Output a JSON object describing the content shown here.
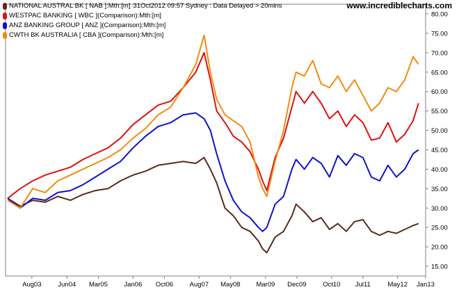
{
  "header": {
    "site_url": "www.incrediblecharts.com",
    "meta": "31Oct2012 09:57  Sydney : Data Delayed > 20mins"
  },
  "chart_data": {
    "type": "line",
    "title": "",
    "xlabel": "",
    "ylabel": "",
    "ylim": [
      12.5,
      82.5
    ],
    "xlim": [
      2002.95,
      2013.0
    ],
    "grid": false,
    "legend_position": "top-left",
    "y_ticks": [
      "15.00",
      "20.00",
      "25.00",
      "30.00",
      "35.00",
      "40.00",
      "45.00",
      "50.00",
      "55.00",
      "60.00",
      "65.00",
      "70.00",
      "75.00",
      "80.00"
    ],
    "y_tick_values": [
      15,
      20,
      25,
      30,
      35,
      40,
      45,
      50,
      55,
      60,
      65,
      70,
      75,
      80
    ],
    "x_ticks": [
      {
        "label": "Aug03",
        "t": 2003.58
      },
      {
        "label": "Jun04",
        "t": 2004.42
      },
      {
        "label": "Mar05",
        "t": 2005.17
      },
      {
        "label": "Jan06",
        "t": 2006.0
      },
      {
        "label": "Oct06",
        "t": 2006.75
      },
      {
        "label": "Aug07",
        "t": 2007.58
      },
      {
        "label": "May08",
        "t": 2008.33
      },
      {
        "label": "Mar09",
        "t": 2009.17
      },
      {
        "label": "Dec09",
        "t": 2009.92
      },
      {
        "label": "Oct10",
        "t": 2010.75
      },
      {
        "label": "Jul11",
        "t": 2011.5
      },
      {
        "label": "May12",
        "t": 2012.33
      },
      {
        "label": "Jan13",
        "t": 2013.0
      }
    ],
    "series": [
      {
        "name": "NATIONAL AUSTRAL BK [ NAB ]:Mth:[m]",
        "color": "#5a2a1e",
        "x": [
          2003.0,
          2003.3,
          2003.6,
          2003.9,
          2004.2,
          2004.5,
          2004.8,
          2005.1,
          2005.4,
          2005.7,
          2006.0,
          2006.3,
          2006.6,
          2006.9,
          2007.2,
          2007.5,
          2007.7,
          2007.85,
          2008.0,
          2008.2,
          2008.4,
          2008.6,
          2008.8,
          2009.0,
          2009.1,
          2009.2,
          2009.4,
          2009.6,
          2009.8,
          2009.9,
          2010.1,
          2010.3,
          2010.5,
          2010.7,
          2010.9,
          2011.1,
          2011.3,
          2011.5,
          2011.7,
          2011.9,
          2012.1,
          2012.3,
          2012.5,
          2012.7,
          2012.83
        ],
        "values": [
          32.5,
          30.5,
          32.0,
          31.5,
          33.0,
          32.0,
          33.5,
          34.5,
          35.0,
          37.0,
          38.5,
          39.5,
          41.0,
          41.5,
          42.0,
          41.5,
          43.0,
          40.0,
          36.5,
          30.0,
          28.0,
          25.0,
          24.0,
          21.5,
          19.5,
          18.5,
          22.5,
          24.0,
          28.0,
          31.0,
          29.0,
          26.5,
          27.5,
          24.5,
          26.0,
          24.0,
          26.5,
          27.0,
          24.0,
          23.0,
          24.0,
          23.5,
          24.5,
          25.5,
          26.0
        ]
      },
      {
        "name": "WESTPAC BANKING [ WBC ](Comparison):Mth:[m]",
        "color": "#e01010",
        "x": [
          2003.0,
          2003.3,
          2003.6,
          2003.9,
          2004.2,
          2004.5,
          2004.8,
          2005.1,
          2005.4,
          2005.7,
          2006.0,
          2006.3,
          2006.6,
          2006.9,
          2007.2,
          2007.5,
          2007.7,
          2007.85,
          2008.0,
          2008.2,
          2008.4,
          2008.6,
          2008.8,
          2009.0,
          2009.1,
          2009.2,
          2009.4,
          2009.6,
          2009.8,
          2009.9,
          2010.1,
          2010.3,
          2010.5,
          2010.7,
          2010.9,
          2011.1,
          2011.3,
          2011.5,
          2011.7,
          2011.9,
          2012.1,
          2012.3,
          2012.5,
          2012.7,
          2012.83
        ],
        "values": [
          32.5,
          35.0,
          37.0,
          38.5,
          39.5,
          40.5,
          42.5,
          44.0,
          45.5,
          48.0,
          51.5,
          54.0,
          56.5,
          57.5,
          61.0,
          65.0,
          70.0,
          63.0,
          55.0,
          52.0,
          48.5,
          47.0,
          44.5,
          40.0,
          37.0,
          34.5,
          43.0,
          48.0,
          56.0,
          60.0,
          57.0,
          60.0,
          57.0,
          53.0,
          55.0,
          51.0,
          54.0,
          52.0,
          47.5,
          48.0,
          52.0,
          47.0,
          49.0,
          52.5,
          57.0
        ]
      },
      {
        "name": "ANZ BANKING GROUP [ ANZ ](Comparison):Mth:[m]",
        "color": "#1010cc",
        "x": [
          2003.0,
          2003.3,
          2003.6,
          2003.9,
          2004.2,
          2004.5,
          2004.8,
          2005.1,
          2005.4,
          2005.7,
          2006.0,
          2006.3,
          2006.6,
          2006.9,
          2007.2,
          2007.5,
          2007.7,
          2007.85,
          2008.0,
          2008.2,
          2008.4,
          2008.6,
          2008.8,
          2009.0,
          2009.1,
          2009.2,
          2009.4,
          2009.6,
          2009.8,
          2009.9,
          2010.1,
          2010.3,
          2010.5,
          2010.7,
          2010.9,
          2011.1,
          2011.3,
          2011.5,
          2011.7,
          2011.9,
          2012.1,
          2012.3,
          2012.5,
          2012.7,
          2012.83
        ],
        "values": [
          32.5,
          30.0,
          32.5,
          32.0,
          34.0,
          34.5,
          36.0,
          38.0,
          40.0,
          42.0,
          45.5,
          48.5,
          51.0,
          52.0,
          54.0,
          54.5,
          53.0,
          50.0,
          44.0,
          37.0,
          32.0,
          29.0,
          27.5,
          25.0,
          24.0,
          25.0,
          31.0,
          33.0,
          40.0,
          42.5,
          40.0,
          43.0,
          41.5,
          38.0,
          43.5,
          41.0,
          44.0,
          43.0,
          38.0,
          37.0,
          41.0,
          38.0,
          40.0,
          44.0,
          45.0
        ]
      },
      {
        "name": "CWTH BK AUSTRALIA [ CBA ](Comparison):Mth:[m]",
        "color": "#f08c10",
        "x": [
          2003.0,
          2003.3,
          2003.6,
          2003.9,
          2004.2,
          2004.5,
          2004.8,
          2005.1,
          2005.4,
          2005.7,
          2006.0,
          2006.3,
          2006.6,
          2006.9,
          2007.2,
          2007.5,
          2007.7,
          2007.85,
          2008.0,
          2008.2,
          2008.4,
          2008.6,
          2008.8,
          2009.0,
          2009.1,
          2009.2,
          2009.4,
          2009.6,
          2009.8,
          2009.9,
          2010.1,
          2010.3,
          2010.5,
          2010.7,
          2010.9,
          2011.1,
          2011.3,
          2011.5,
          2011.7,
          2011.9,
          2012.1,
          2012.3,
          2012.5,
          2012.7,
          2012.83
        ],
        "values": [
          32.0,
          30.0,
          35.0,
          34.0,
          37.0,
          38.5,
          40.0,
          41.5,
          43.0,
          45.0,
          48.0,
          50.5,
          54.0,
          56.0,
          61.0,
          67.0,
          74.5,
          65.0,
          58.0,
          54.0,
          52.5,
          51.0,
          47.0,
          38.0,
          35.0,
          33.0,
          42.0,
          50.0,
          61.0,
          65.0,
          64.0,
          68.0,
          62.0,
          61.0,
          64.0,
          60.0,
          63.0,
          59.0,
          55.0,
          57.0,
          61.0,
          60.0,
          63.0,
          69.0,
          67.0
        ]
      }
    ]
  }
}
